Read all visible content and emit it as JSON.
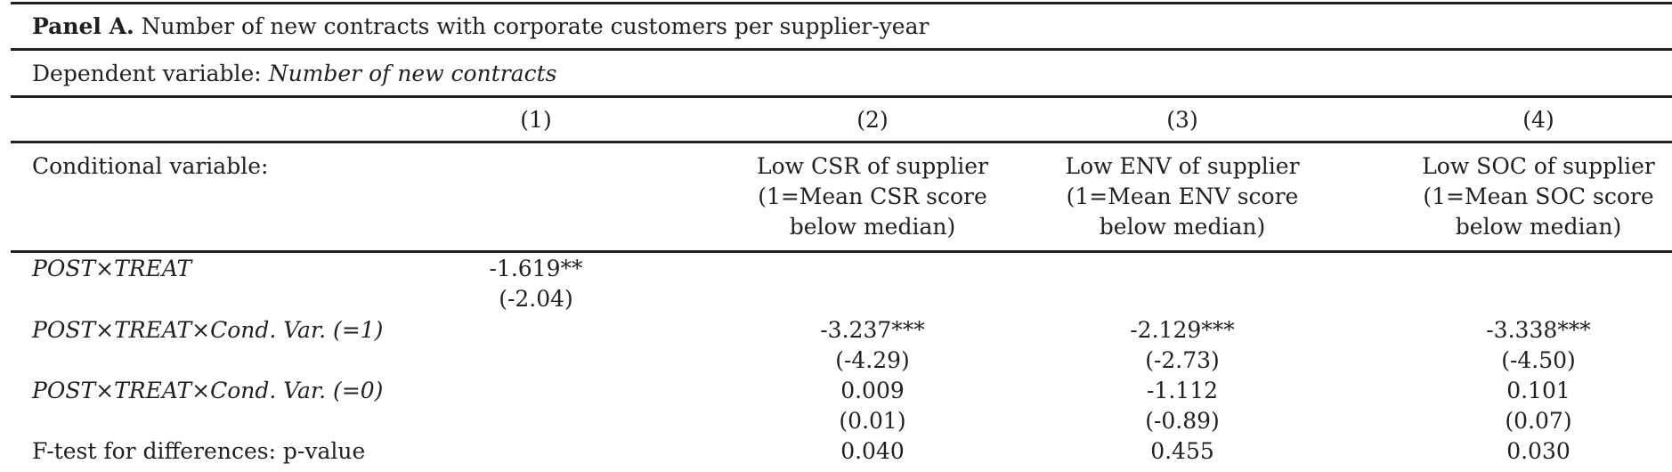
{
  "panel": {
    "title_bold": "Panel A.",
    "title_rest": " Number of new contracts with corporate customers per supplier-year"
  },
  "dependent": {
    "label": "Dependent variable: ",
    "value": "Number of new contracts"
  },
  "columns": [
    "(1)",
    "(2)",
    "(3)",
    "(4)"
  ],
  "conditional": {
    "label": "Conditional variable:",
    "col2": [
      "Low CSR of supplier",
      "(1=Mean CSR score",
      "below median)"
    ],
    "col3": [
      "Low ENV of supplier",
      "(1=Mean ENV score",
      "below median)"
    ],
    "col4": [
      "Low SOC of supplier",
      "(1=Mean SOC score",
      "below median)"
    ]
  },
  "rows": {
    "post_treat": {
      "label": "POST×TREAT",
      "c1_coef": "-1.619**",
      "c1_t": "(-2.04)"
    },
    "cond1": {
      "label": "POST×TREAT×Cond. Var. (=1)",
      "c2_coef": "-3.237***",
      "c2_t": "(-4.29)",
      "c3_coef": "-2.129***",
      "c3_t": "(-2.73)",
      "c4_coef": "-3.338***",
      "c4_t": "(-4.50)"
    },
    "cond0": {
      "label": "POST×TREAT×Cond. Var. (=0)",
      "c2_coef": "0.009",
      "c2_t": "(0.01)",
      "c3_coef": "-1.112",
      "c3_t": "(-0.89)",
      "c4_coef": "0.101",
      "c4_t": "(0.07)"
    },
    "ftest": {
      "label": "F-test for differences: p-value",
      "c2": "0.040",
      "c3": "0.455",
      "c4": "0.030"
    }
  }
}
